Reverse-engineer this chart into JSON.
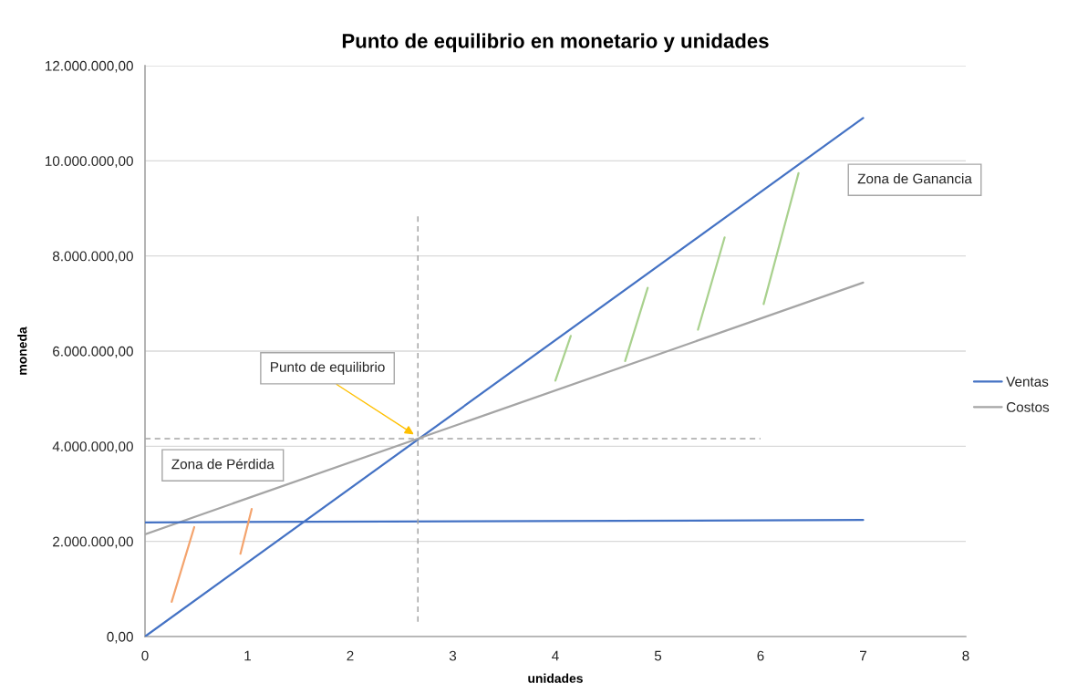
{
  "chart_data": {
    "type": "line",
    "title": "Punto de equilibrio en monetario y unidades",
    "xlabel": "unidades",
    "ylabel": "moneda",
    "xlim": [
      0,
      8
    ],
    "xticks": [
      0,
      1,
      2,
      3,
      4,
      5,
      6,
      7,
      8
    ],
    "ylim": [
      0,
      12000000
    ],
    "yticks": [
      {
        "value": 0,
        "label": "0,00"
      },
      {
        "value": 2000000,
        "label": "2.000.000,00"
      },
      {
        "value": 4000000,
        "label": "4.000.000,00"
      },
      {
        "value": 6000000,
        "label": "6.000.000,00"
      },
      {
        "value": 8000000,
        "label": "8.000.000,00"
      },
      {
        "value": 10000000,
        "label": "10.000.000,00"
      },
      {
        "value": 12000000,
        "label": "12.000.000,00"
      }
    ],
    "grid": "y",
    "legend": "right",
    "series": [
      {
        "name": "Ventas",
        "color": "#4472c4",
        "x": [
          0,
          7
        ],
        "values": [
          0,
          10900000
        ]
      },
      {
        "name": "Costos",
        "color": "#a5a5a5",
        "x": [
          0,
          7
        ],
        "values": [
          2150000,
          7440000
        ]
      },
      {
        "color": "#4472c4",
        "x": [
          0,
          7
        ],
        "values": [
          2400000,
          2450000
        ]
      },
      {
        "color": "#a5a5a5",
        "line_style": "dashed",
        "x": [
          2.66,
          2.66
        ],
        "values": [
          310000,
          8910000
        ]
      },
      {
        "color": "#a5a5a5",
        "line_style": "dashed",
        "x": [
          0,
          6
        ],
        "values": [
          4160000,
          4160000
        ]
      },
      {
        "color": "#f4a46e",
        "x": [
          0.26,
          0.48
        ],
        "values": [
          730000,
          2300000
        ]
      },
      {
        "color": "#f4a46e",
        "x": [
          0.93,
          1.04
        ],
        "values": [
          1740000,
          2680000
        ]
      },
      {
        "color": "#a9d18e",
        "x": [
          4.0,
          4.15
        ],
        "values": [
          5380000,
          6320000
        ]
      },
      {
        "color": "#a9d18e",
        "x": [
          4.68,
          4.9
        ],
        "values": [
          5790000,
          7330000
        ]
      },
      {
        "color": "#a9d18e",
        "x": [
          5.39,
          5.65
        ],
        "values": [
          6450000,
          8390000
        ]
      },
      {
        "color": "#a9d18e",
        "x": [
          6.03,
          6.37
        ],
        "values": [
          6990000,
          9740000
        ]
      }
    ],
    "annotations": [
      {
        "text": "Punto de equilibrio",
        "x": 2.62,
        "y": 4250000
      },
      "Zona de Pérdida",
      "Zona de Ganancia"
    ]
  }
}
